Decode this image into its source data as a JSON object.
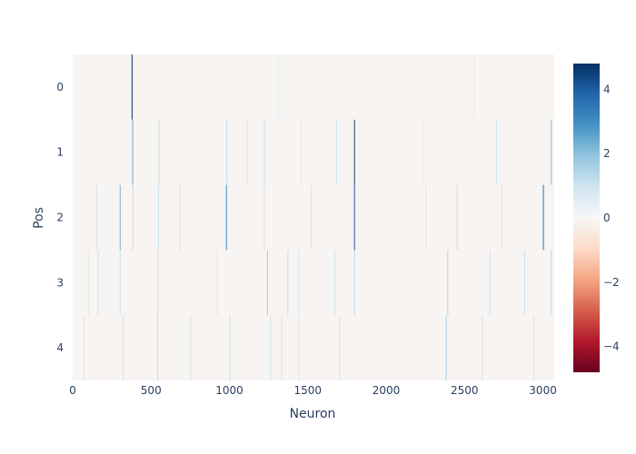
{
  "chart_data": {
    "type": "heatmap",
    "title": "",
    "xlabel": "Neuron",
    "ylabel": "Pos",
    "x_range": [
      0,
      3072
    ],
    "x_ticks": [
      0,
      500,
      1000,
      1500,
      2000,
      2500,
      3000
    ],
    "y_categories": [
      "0",
      "1",
      "2",
      "3",
      "4"
    ],
    "colorbar": {
      "colorscale": "RdBu",
      "range": [
        -4.8,
        4.8
      ],
      "ticks": [
        -4,
        -2,
        0,
        2,
        4
      ],
      "tick_labels": [
        "−4",
        "−2",
        "0",
        "2",
        "4"
      ]
    },
    "background_value": -0.1,
    "rows": [
      {
        "pos": "0",
        "highlights": [
          [
            376,
            4.8
          ],
          [
            1310,
            0.5
          ],
          [
            2560,
            0.4
          ]
        ]
      },
      {
        "pos": "1",
        "highlights": [
          [
            380,
            2.5
          ],
          [
            548,
            1.2
          ],
          [
            980,
            1.1
          ],
          [
            1110,
            0.9
          ],
          [
            1220,
            1.1
          ],
          [
            1455,
            0.8
          ],
          [
            1680,
            1.0
          ],
          [
            1795,
            4.5
          ],
          [
            2230,
            0.7
          ],
          [
            2700,
            1.1
          ],
          [
            3050,
            2.0
          ]
        ]
      },
      {
        "pos": "2",
        "highlights": [
          [
            150,
            0.9
          ],
          [
            300,
            2.3
          ],
          [
            382,
            1.2
          ],
          [
            545,
            0.9
          ],
          [
            680,
            1.0
          ],
          [
            978,
            3.0
          ],
          [
            1220,
            1.0
          ],
          [
            1520,
            0.9
          ],
          [
            1795,
            4.0
          ],
          [
            2250,
            0.8
          ],
          [
            2450,
            1.2
          ],
          [
            2735,
            0.9
          ],
          [
            3000,
            3.5
          ]
        ]
      },
      {
        "pos": "3",
        "highlights": [
          [
            100,
            0.8
          ],
          [
            160,
            1.0
          ],
          [
            300,
            1.0
          ],
          [
            540,
            1.1
          ],
          [
            920,
            0.8
          ],
          [
            1240,
            1.6
          ],
          [
            1370,
            1.2
          ],
          [
            1440,
            0.9
          ],
          [
            1670,
            1.0
          ],
          [
            1795,
            1.3
          ],
          [
            2390,
            1.4
          ],
          [
            2660,
            1.0
          ],
          [
            2880,
            1.1
          ],
          [
            3050,
            1.4
          ]
        ]
      },
      {
        "pos": "4",
        "highlights": [
          [
            70,
            0.8
          ],
          [
            320,
            1.0
          ],
          [
            540,
            1.2
          ],
          [
            750,
            0.9
          ],
          [
            1000,
            1.1
          ],
          [
            1260,
            1.0
          ],
          [
            1330,
            0.9
          ],
          [
            1440,
            0.8
          ],
          [
            1700,
            1.0
          ],
          [
            2380,
            1.6
          ],
          [
            2610,
            1.0
          ],
          [
            2940,
            1.0
          ]
        ]
      }
    ]
  }
}
